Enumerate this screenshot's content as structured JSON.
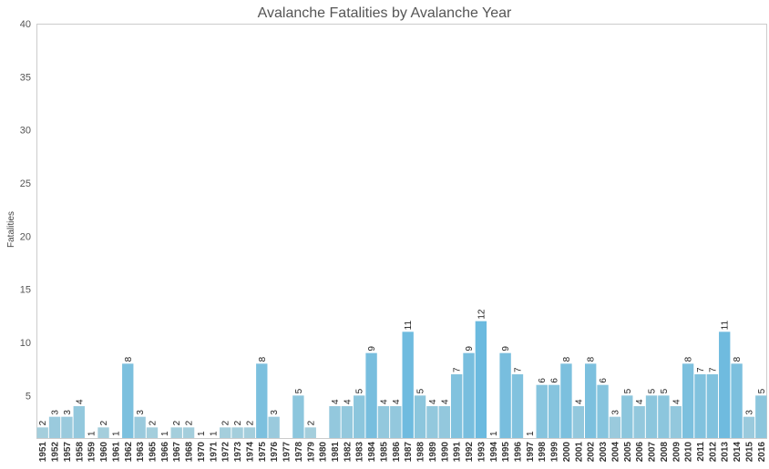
{
  "chart_data": {
    "type": "bar",
    "title": "Avalanche Fatalities by Avalanche Year",
    "ylabel": "Fatalities",
    "xlabel": "",
    "ylim": [
      1,
      40
    ],
    "yticks": [
      5,
      10,
      15,
      20,
      25,
      30,
      35,
      40
    ],
    "grid": false,
    "categories": [
      "1951",
      "1952",
      "1957",
      "1958",
      "1959",
      "1960",
      "1961",
      "1962",
      "1963",
      "1965",
      "1966",
      "1967",
      "1968",
      "1970",
      "1971",
      "1972",
      "1973",
      "1974",
      "1975",
      "1976",
      "1977",
      "1978",
      "1979",
      "1980",
      "1981",
      "1982",
      "1983",
      "1984",
      "1985",
      "1986",
      "1987",
      "1988",
      "1989",
      "1990",
      "1991",
      "1992",
      "1993",
      "1994",
      "1995",
      "1996",
      "1997",
      "1998",
      "1999",
      "2000",
      "2001",
      "2002",
      "2003",
      "2004",
      "2005",
      "2006",
      "2007",
      "2008",
      "2009",
      "2010",
      "2011",
      "2012",
      "2013",
      "2014",
      "2015",
      "2016"
    ],
    "values": [
      2,
      3,
      3,
      4,
      1,
      2,
      1,
      8,
      3,
      2,
      1,
      2,
      2,
      1,
      1,
      2,
      2,
      2,
      8,
      3,
      0,
      5,
      2,
      0,
      4,
      4,
      5,
      9,
      4,
      4,
      11,
      5,
      4,
      4,
      7,
      9,
      12,
      1,
      9,
      7,
      1,
      6,
      6,
      8,
      4,
      8,
      6,
      3,
      5,
      4,
      5,
      5,
      4,
      8,
      7,
      7,
      11,
      8,
      3,
      5
    ],
    "colors": {
      "low": "#b9d5db",
      "high": "#6bbadf",
      "text": "#222222",
      "axis": "#cccccc"
    }
  }
}
